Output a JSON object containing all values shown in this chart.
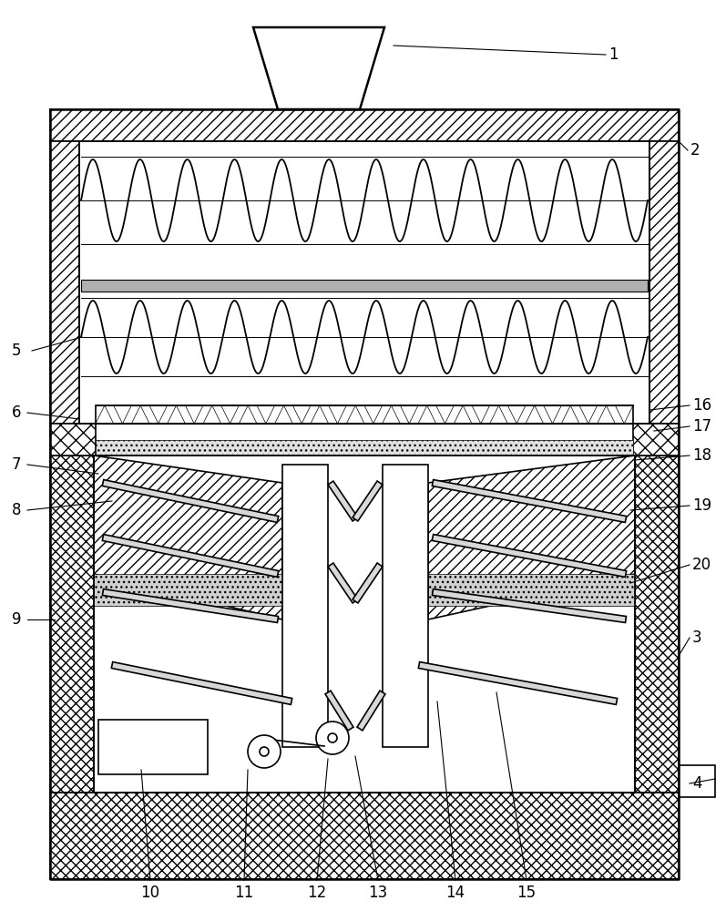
{
  "fig_width": 7.97,
  "fig_height": 10.0,
  "dpi": 100,
  "bg_color": "#ffffff"
}
